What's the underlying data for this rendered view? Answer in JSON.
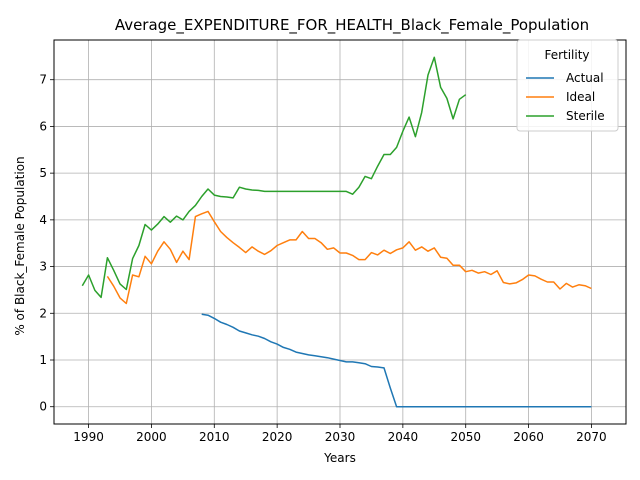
{
  "chart_data": {
    "type": "line",
    "title": "Average_EXPENDITURE_FOR_HEALTH_Black_Female_Population",
    "xlabel": "Years",
    "ylabel": "% of Black_Female Population",
    "xlim": [
      1984.5,
      2075.5
    ],
    "ylim": [
      -0.37,
      7.85
    ],
    "xticks": [
      1990,
      2000,
      2010,
      2020,
      2030,
      2040,
      2050,
      2060,
      2070
    ],
    "yticks": [
      0,
      1,
      2,
      3,
      4,
      5,
      6,
      7
    ],
    "grid": true,
    "legend": {
      "title": "Fertility",
      "placement": "top-right"
    },
    "series": [
      {
        "name": "Actual",
        "color": "#1f77b4",
        "x": [
          2008,
          2009,
          2010,
          2011,
          2012,
          2013,
          2014,
          2015,
          2016,
          2017,
          2018,
          2019,
          2020,
          2021,
          2022,
          2023,
          2024,
          2025,
          2026,
          2027,
          2028,
          2029,
          2030,
          2031,
          2032,
          2033,
          2034,
          2035,
          2036,
          2037,
          2038,
          2039,
          2040,
          2041,
          2042,
          2043,
          2044,
          2045,
          2046,
          2047,
          2048,
          2049,
          2050,
          2051,
          2052,
          2053,
          2054,
          2055,
          2056,
          2057,
          2058,
          2059,
          2060,
          2061,
          2062,
          2063,
          2064,
          2065,
          2066,
          2067,
          2068,
          2069,
          2070
        ],
        "y": [
          1.98,
          1.96,
          1.89,
          1.81,
          1.76,
          1.7,
          1.62,
          1.58,
          1.54,
          1.51,
          1.46,
          1.39,
          1.34,
          1.27,
          1.23,
          1.17,
          1.14,
          1.11,
          1.09,
          1.07,
          1.05,
          1.02,
          0.99,
          0.96,
          0.96,
          0.94,
          0.92,
          0.86,
          0.85,
          0.83,
          0.4,
          0,
          0,
          0,
          0,
          0,
          0,
          0,
          0,
          0,
          0,
          0,
          0,
          0,
          0,
          0,
          0,
          0,
          0,
          0,
          0,
          0,
          0,
          0,
          0,
          0,
          0,
          0,
          0,
          0,
          0,
          0,
          0
        ]
      },
      {
        "name": "Ideal",
        "color": "#ff7f0e",
        "x": [
          1993,
          1994,
          1995,
          1996,
          1997,
          1998,
          1999,
          2000,
          2001,
          2002,
          2003,
          2004,
          2005,
          2006,
          2007,
          2008,
          2009,
          2010,
          2011,
          2012,
          2013,
          2014,
          2015,
          2016,
          2017,
          2018,
          2019,
          2020,
          2021,
          2022,
          2023,
          2024,
          2025,
          2026,
          2027,
          2028,
          2029,
          2030,
          2031,
          2032,
          2033,
          2034,
          2035,
          2036,
          2037,
          2038,
          2039,
          2040,
          2041,
          2042,
          2043,
          2044,
          2045,
          2046,
          2047,
          2048,
          2049,
          2050,
          2051,
          2052,
          2053,
          2054,
          2055,
          2056,
          2057,
          2058,
          2059,
          2060,
          2061,
          2062,
          2063,
          2064,
          2065,
          2066,
          2067,
          2068,
          2069,
          2070
        ],
        "y": [
          2.79,
          2.58,
          2.33,
          2.21,
          2.82,
          2.78,
          3.22,
          3.06,
          3.33,
          3.53,
          3.37,
          3.09,
          3.33,
          3.15,
          4.07,
          4.13,
          4.18,
          3.96,
          3.75,
          3.62,
          3.51,
          3.41,
          3.3,
          3.42,
          3.33,
          3.26,
          3.34,
          3.45,
          3.51,
          3.57,
          3.57,
          3.75,
          3.6,
          3.6,
          3.51,
          3.37,
          3.4,
          3.29,
          3.29,
          3.24,
          3.15,
          3.15,
          3.3,
          3.25,
          3.35,
          3.28,
          3.36,
          3.4,
          3.53,
          3.35,
          3.42,
          3.33,
          3.4,
          3.2,
          3.18,
          3.03,
          3.03,
          2.89,
          2.92,
          2.86,
          2.89,
          2.83,
          2.91,
          2.66,
          2.63,
          2.65,
          2.72,
          2.82,
          2.8,
          2.73,
          2.67,
          2.67,
          2.52,
          2.64,
          2.56,
          2.61,
          2.59,
          2.53
        ]
      },
      {
        "name": "Sterile",
        "color": "#2ca02c",
        "x": [
          1989,
          1990,
          1991,
          1992,
          1993,
          1994,
          1995,
          1996,
          1997,
          1998,
          1999,
          2000,
          2001,
          2002,
          2003,
          2004,
          2005,
          2006,
          2007,
          2008,
          2009,
          2010,
          2011,
          2012,
          2013,
          2014,
          2015,
          2016,
          2017,
          2018,
          2019,
          2020,
          2021,
          2022,
          2023,
          2024,
          2025,
          2026,
          2027,
          2028,
          2029,
          2030,
          2031,
          2032,
          2033,
          2034,
          2035,
          2036,
          2037,
          2038,
          2039,
          2040,
          2041,
          2042,
          2043,
          2044,
          2045,
          2046,
          2047,
          2048,
          2049,
          2050
        ],
        "y": [
          2.59,
          2.82,
          2.49,
          2.34,
          3.19,
          2.92,
          2.63,
          2.51,
          3.17,
          3.45,
          3.9,
          3.78,
          3.91,
          4.07,
          3.95,
          4.08,
          4.0,
          4.18,
          4.31,
          4.5,
          4.66,
          4.53,
          4.5,
          4.49,
          4.47,
          4.7,
          4.66,
          4.64,
          4.63,
          4.61,
          4.61,
          4.61,
          4.61,
          4.61,
          4.61,
          4.61,
          4.61,
          4.61,
          4.61,
          4.61,
          4.61,
          4.61,
          4.61,
          4.55,
          4.7,
          4.93,
          4.88,
          5.15,
          5.4,
          5.4,
          5.55,
          5.9,
          6.2,
          5.78,
          6.3,
          7.1,
          7.48,
          6.84,
          6.6,
          6.16,
          6.58,
          6.68
        ]
      }
    ]
  }
}
